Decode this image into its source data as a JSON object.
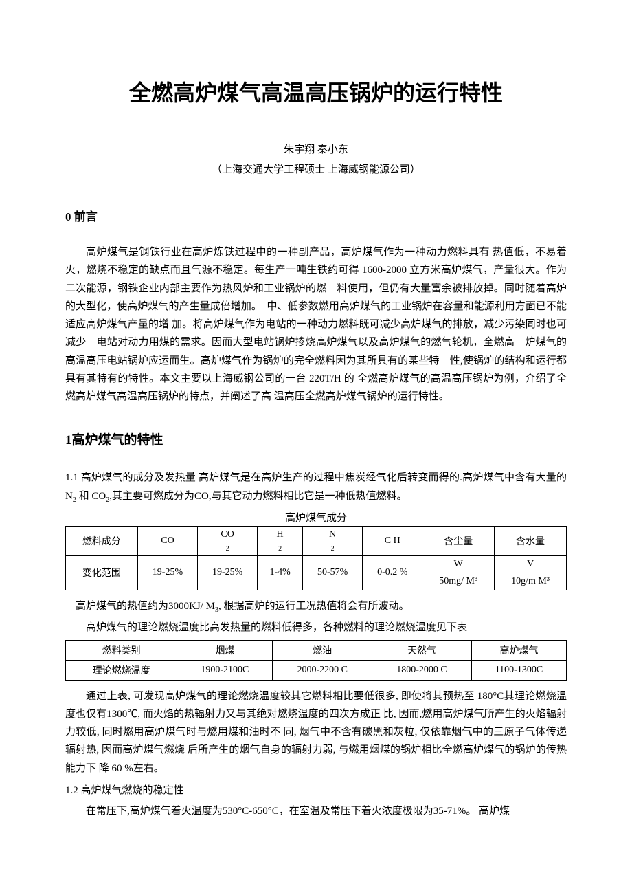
{
  "title": "全燃高炉煤气高温高压锅炉的运行特性",
  "authors": "朱宇翔  秦小东",
  "affiliation": "（上海交通大学工程硕士  上海威钢能源公司）",
  "section0": {
    "heading": "0 前言"
  },
  "p0": "高炉煤气是钢铁行业在高炉炼铁过程中的一种副产品，高炉煤气作为一种动力燃料具有 热值低，不易着火，燃烧不稳定的缺点而且气源不稳定。每生产一吨生铁约可得 1600-2000 立方米高炉煤气，产量很大。作为二次能源，钢铁企业内部主要作为热风炉和工业锅炉的燃　料使用，但仍有大量富余被排放掉。同时随着高炉的大型化，使高炉煤气的产生量成倍增加。　中、低参数燃用高炉煤气的工业锅炉在容量和能源利用方面已不能适应高炉煤气产量的增 加。将高炉煤气作为电站的一种动力燃料既可减少高炉煤气的排放，减少污染同时也可减少　电站对动力用煤的需求。因而大型电站锅炉掺烧高炉煤气以及高炉煤气的燃气轮机，全燃高　炉煤气的高温高压电站锅炉应运而生。高炉煤气作为锅炉的完全燃料因为其所具有的某些特　性,使锅炉的结构和运行都具有其特有的特性。本文主要以上海威钢公司的一台 220T/H 的 全燃高炉煤气的高温高压锅炉为例，介绍了全燃高炉煤气高温高压锅炉的特点，并阐述了高 温高压全燃高炉煤气锅炉的运行特性。",
  "section1": {
    "heading": "1高炉煤气的特性"
  },
  "p11_a": "1.1 高炉煤气的成分及发热量 高炉煤气是在高炉生产的过程中焦炭经气化后转变而得的.高炉煤气中含有大量的 N",
  "p11_b": "和 CO",
  "p11_c": ",其主要可燃成分为CO,与其它动力燃料相比它是一种低热值燃料。",
  "table1": {
    "caption": "高炉煤气成分",
    "headers": [
      "燃料成分",
      "CO",
      "CO₂",
      "H₂",
      "N₂",
      "C H",
      "含尘量",
      "含水量"
    ],
    "row1_label": "变化范围",
    "row1_values": [
      "19-25%",
      "19-25%",
      "1-4%",
      "50-57%",
      "0-0.2 %",
      "W",
      "V"
    ],
    "row2_values": [
      "",
      "",
      "",
      "",
      "",
      "",
      "50mg/ M³",
      "10g/m M³"
    ]
  },
  "p_heat": "高炉煤气的热值约为3000KJ/ M",
  "p_heat_b": ", 根据高炉的运行工况热值将会有所波动。",
  "p_table2_intro": "高炉煤气的理论燃烧温度比高发热量的燃料低得多，各种燃料的理论燃烧温度见下表",
  "table2": {
    "headers": [
      "燃料类别",
      "烟煤",
      "燃油",
      "天然气",
      "高炉煤气"
    ],
    "row_label": "理论燃烧温度",
    "row_values": [
      "1900-2100C",
      "2000-2200 C",
      "1800-2000 C",
      "1100-1300C"
    ]
  },
  "p2": "通过上表, 可发现高炉煤气的理论燃烧温度较其它燃料相比要低很多, 即使将其预热至 180°C其理论燃烧温度也仅有1300℃, 而火焰的热辐射力又与其绝对燃烧温度的四次方成正 比, 因而,燃用高炉煤气所产生的火焰辐射力较低, 同时燃用高炉煤气时与燃用煤和油时不 同, 烟气中不含有碳黑和灰粒, 仅依靠烟气中的三原子气体传递辐射热, 因而高炉煤气燃烧 后所产生的烟气自身的辐射力弱, 与燃用烟煤的锅炉相比全燃高炉煤气的锅炉的传热能力下 降 60 %左右。",
  "p12_head": "1.2   高炉煤气燃烧的稳定性",
  "p12_body": "在常压下,高炉煤气着火温度为530°C-650°C，在室温及常压下着火浓度极限为35-71%。 高炉煤"
}
